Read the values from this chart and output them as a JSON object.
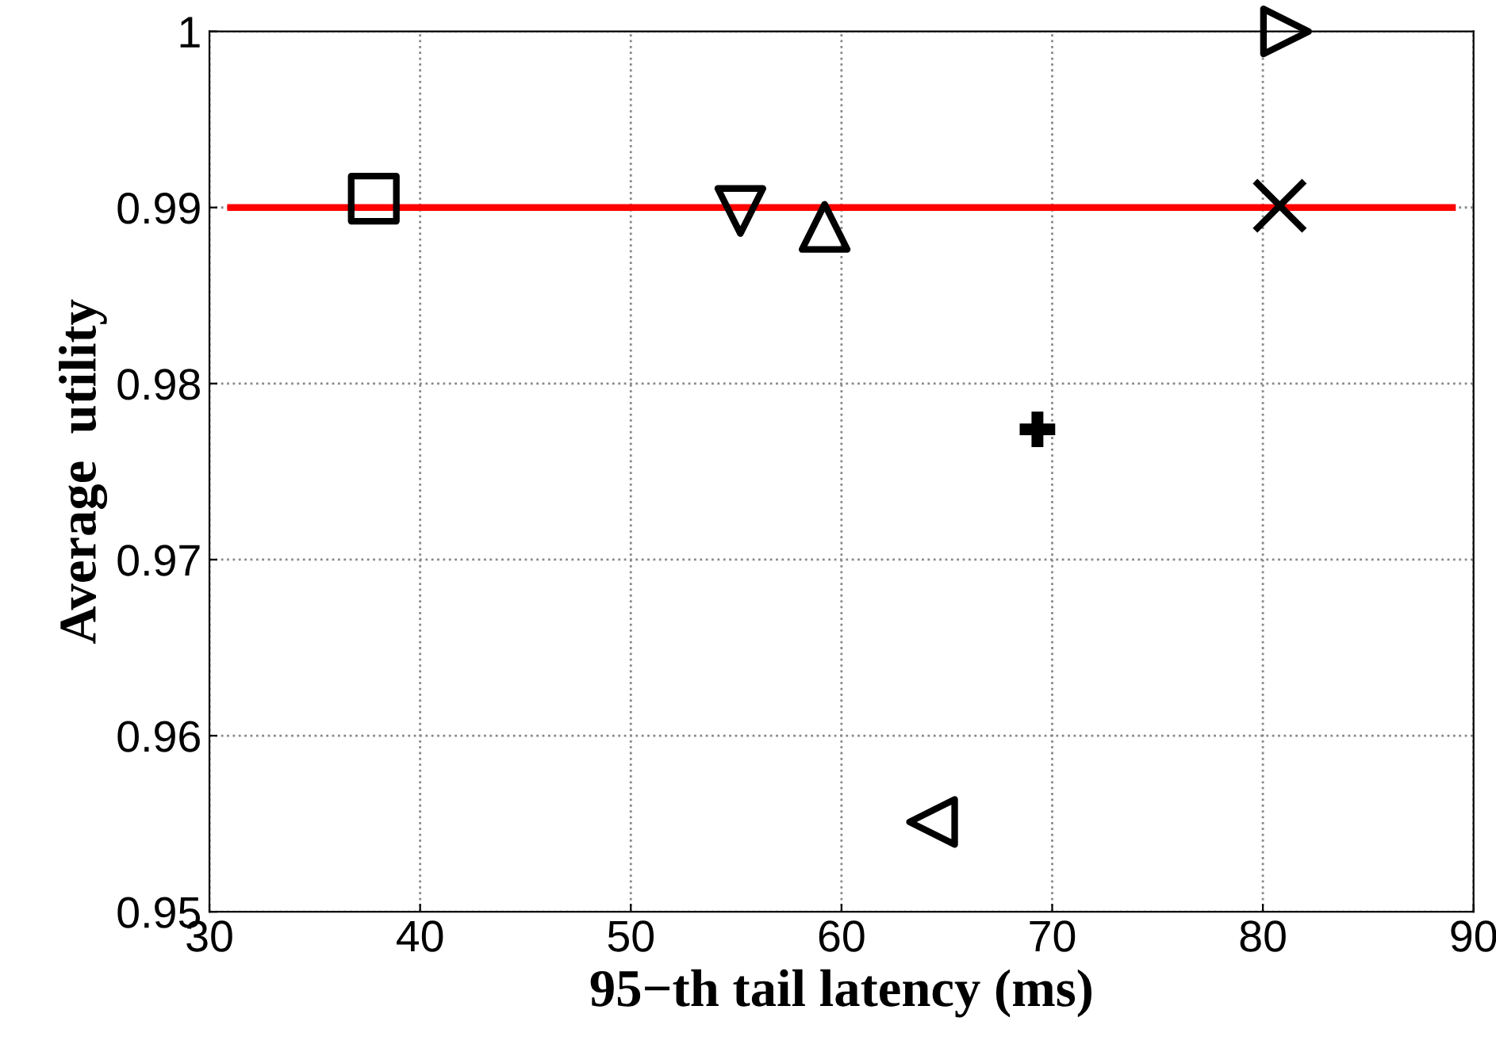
{
  "chart_data": {
    "type": "scatter",
    "xlabel": "95−th tail latency (ms)",
    "ylabel": "Average  utility",
    "series": [
      {
        "type": "line",
        "color": "#ff0000",
        "x": [
          31,
          89
        ],
        "values": [
          0.99,
          0.99
        ],
        "marker": "none",
        "line_style": "solid"
      },
      {
        "color": "#000000",
        "x": [
          37.8
        ],
        "values": [
          0.9905
        ],
        "marker": "square"
      },
      {
        "color": "#000000",
        "x": [
          55.2
        ],
        "values": [
          0.9898
        ],
        "marker": "triangle_down"
      },
      {
        "color": "#000000",
        "x": [
          59.2
        ],
        "values": [
          0.9889
        ],
        "marker": "triangle"
      },
      {
        "color": "#000000",
        "x": [
          69.3
        ],
        "values": [
          0.9774
        ],
        "marker": "cross"
      },
      {
        "color": "#000000",
        "x": [
          80.8
        ],
        "values": [
          0.9901
        ],
        "marker": "x"
      },
      {
        "color": "#000000",
        "x": [
          81.1
        ],
        "values": [
          1.0
        ],
        "marker": "triangle_right"
      },
      {
        "color": "#000000",
        "x": [
          64.3
        ],
        "values": [
          0.9551
        ],
        "marker": "triangle_left"
      }
    ],
    "xlim": [
      30,
      90
    ],
    "xticks": [
      30,
      40,
      50,
      60,
      70,
      80,
      90
    ],
    "ylim": [
      0.95,
      1.0
    ],
    "yticks": [
      0.95,
      0.96,
      0.97,
      0.98,
      0.99,
      {
        "value": 1.0,
        "label": "1"
      }
    ],
    "grid": true
  }
}
